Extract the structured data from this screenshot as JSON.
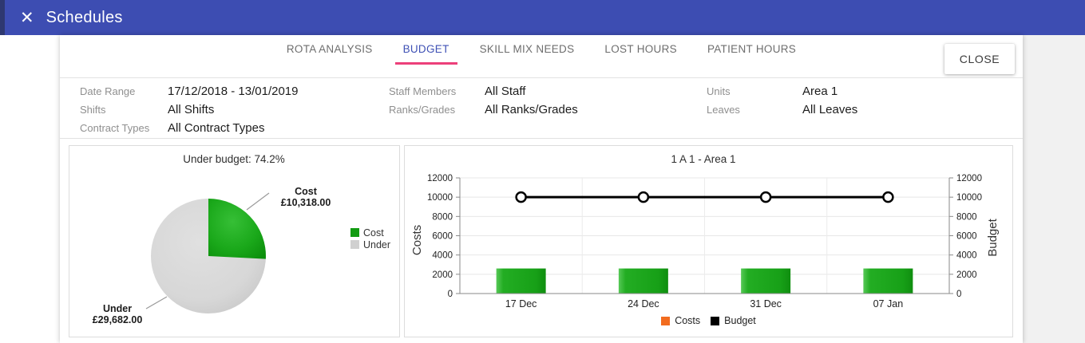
{
  "header": {
    "title": "Schedules",
    "close_icon": "✕"
  },
  "tabs": {
    "active": "BUDGET",
    "items": [
      {
        "label": "ROTA ANALYSIS"
      },
      {
        "label": "BUDGET"
      },
      {
        "label": "SKILL MIX NEEDS"
      },
      {
        "label": "LOST HOURS"
      },
      {
        "label": "PATIENT HOURS"
      }
    ]
  },
  "toolbar": {
    "close_label": "CLOSE"
  },
  "filters": {
    "columns": [
      {
        "rows": [
          {
            "label": "Date Range",
            "value": "17/12/2018 - 13/01/2019"
          },
          {
            "label": "Shifts",
            "value": "All Shifts"
          },
          {
            "label": "Contract Types",
            "value": "All Contract Types"
          }
        ]
      },
      {
        "rows": [
          {
            "label": "Staff Members",
            "value": "All Staff"
          },
          {
            "label": "Ranks/Grades",
            "value": "All Ranks/Grades"
          }
        ]
      },
      {
        "rows": [
          {
            "label": "Units",
            "value": "Area 1"
          },
          {
            "label": "Leaves",
            "value": "All Leaves"
          }
        ]
      }
    ]
  },
  "colors": {
    "header_bg": "#3d4db2",
    "active_tab": "#3f51b5",
    "tab_underline": "#ec407a",
    "bar_green": "#1ca41c",
    "pie_green": "#129b12",
    "pie_gray": "#d0d0d0",
    "legend_orange": "#f26c1f",
    "budget_line": "#000000"
  },
  "chart_data": [
    {
      "type": "pie",
      "title": "Under budget: 74.2%",
      "slices": [
        {
          "label": "Cost",
          "value": 10318.0,
          "display": "£10,318.00",
          "pct": 25.8,
          "color": "#129b12"
        },
        {
          "label": "Under",
          "value": 29682.0,
          "display": "£29,682.00",
          "pct": 74.2,
          "color": "#d0d0d0"
        }
      ],
      "legend_position": "right"
    },
    {
      "type": "bar+line",
      "title": "1 A 1 - Area 1",
      "categories": [
        "17 Dec",
        "24 Dec",
        "31 Dec",
        "07 Jan"
      ],
      "series": [
        {
          "name": "Costs",
          "type": "bar",
          "color": "#1ca41c",
          "values": [
            2600,
            2600,
            2600,
            2600
          ]
        },
        {
          "name": "Budget",
          "type": "line",
          "color": "#000000",
          "values": [
            10000,
            10000,
            10000,
            10000
          ]
        }
      ],
      "ylabel_left": "Costs",
      "ylabel_right": "Budget",
      "ylim": [
        0,
        12000
      ],
      "yticks": [
        0,
        2000,
        4000,
        6000,
        8000,
        10000,
        12000
      ],
      "grid": true,
      "legend_position": "bottom",
      "legend": [
        {
          "label": "Costs",
          "color": "#f26c1f"
        },
        {
          "label": "Budget",
          "color": "#000000"
        }
      ]
    }
  ]
}
